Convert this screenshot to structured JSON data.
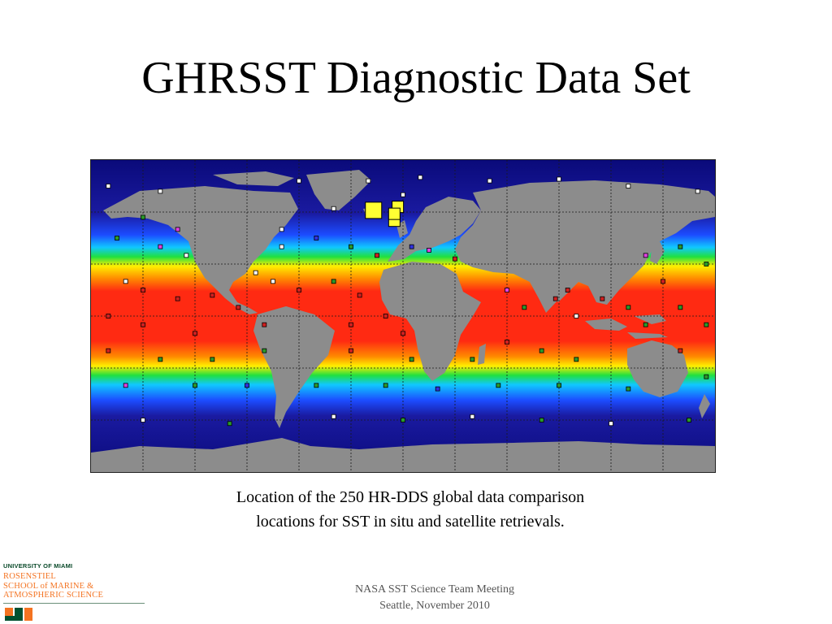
{
  "slide": {
    "title": "GHRSST Diagnostic Data Set",
    "caption_line1": "Location of the 250 HR-DDS global data comparison",
    "caption_line2": "locations for SST in situ and satellite retrievals.",
    "footer_line1": "NASA SST Science Team Meeting",
    "footer_line2": "Seattle, November 2010"
  },
  "logo": {
    "university": "UNIVERSITY OF MIAMI",
    "school_line1": "ROSENSTIEL",
    "school_line2": "SCHOOL of MARINE &",
    "school_line3": "ATMOSPHERIC SCIENCE",
    "colors": {
      "green": "#005030",
      "orange": "#f47321"
    }
  },
  "map": {
    "projection": "equirectangular",
    "lon_range": [
      -180,
      180
    ],
    "lat_range": [
      -90,
      90
    ],
    "graticule_deg": 30,
    "colors": {
      "land": "#8c8c8c",
      "cold": "#10108c",
      "blue": "#1c4cff",
      "cyan": "#10c8ff",
      "green": "#20e040",
      "yellow": "#ffee00",
      "orange": "#ff8a00",
      "red": "#ff2a12",
      "marker_white": "#ffffff",
      "marker_red": "#d02020",
      "marker_green": "#2a9a2a",
      "marker_magenta": "#e040e0",
      "marker_blue": "#3030e0",
      "highlight_yellow": "#ffff33"
    },
    "highlighted_sites": [
      {
        "lon": -17,
        "lat": 61
      },
      {
        "lon": -3,
        "lat": 63
      },
      {
        "lon": -5,
        "lat": 55
      },
      {
        "lon": -5,
        "lat": 59
      }
    ],
    "sites": [
      {
        "lon": -170,
        "lat": 75,
        "c": "w"
      },
      {
        "lon": -140,
        "lat": 72,
        "c": "w"
      },
      {
        "lon": -60,
        "lat": 78,
        "c": "w"
      },
      {
        "lon": -20,
        "lat": 78,
        "c": "w"
      },
      {
        "lon": 10,
        "lat": 80,
        "c": "w"
      },
      {
        "lon": 50,
        "lat": 78,
        "c": "w"
      },
      {
        "lon": 90,
        "lat": 79,
        "c": "w"
      },
      {
        "lon": 130,
        "lat": 75,
        "c": "w"
      },
      {
        "lon": 170,
        "lat": 72,
        "c": "w"
      },
      {
        "lon": -150,
        "lat": 57,
        "c": "g"
      },
      {
        "lon": -130,
        "lat": 50,
        "c": "m"
      },
      {
        "lon": -165,
        "lat": 45,
        "c": "g"
      },
      {
        "lon": -140,
        "lat": 40,
        "c": "m"
      },
      {
        "lon": -125,
        "lat": 35,
        "c": "w"
      },
      {
        "lon": -70,
        "lat": 40,
        "c": "w"
      },
      {
        "lon": -50,
        "lat": 45,
        "c": "b"
      },
      {
        "lon": -30,
        "lat": 40,
        "c": "g"
      },
      {
        "lon": -15,
        "lat": 35,
        "c": "r"
      },
      {
        "lon": 15,
        "lat": 38,
        "c": "m"
      },
      {
        "lon": 30,
        "lat": 33,
        "c": "r"
      },
      {
        "lon": 140,
        "lat": 35,
        "c": "m"
      },
      {
        "lon": 160,
        "lat": 40,
        "c": "g"
      },
      {
        "lon": 175,
        "lat": 30,
        "c": "g"
      },
      {
        "lon": 150,
        "lat": 20,
        "c": "r"
      },
      {
        "lon": -160,
        "lat": 20,
        "c": "w"
      },
      {
        "lon": -150,
        "lat": 15,
        "c": "r"
      },
      {
        "lon": -130,
        "lat": 10,
        "c": "r"
      },
      {
        "lon": -110,
        "lat": 12,
        "c": "r"
      },
      {
        "lon": -85,
        "lat": 25,
        "c": "w"
      },
      {
        "lon": -75,
        "lat": 20,
        "c": "w"
      },
      {
        "lon": -60,
        "lat": 15,
        "c": "r"
      },
      {
        "lon": -40,
        "lat": 20,
        "c": "g"
      },
      {
        "lon": -25,
        "lat": 12,
        "c": "r"
      },
      {
        "lon": -30,
        "lat": -5,
        "c": "r"
      },
      {
        "lon": -10,
        "lat": 0,
        "c": "r"
      },
      {
        "lon": 0,
        "lat": -10,
        "c": "r"
      },
      {
        "lon": 60,
        "lat": 15,
        "c": "m"
      },
      {
        "lon": 70,
        "lat": 5,
        "c": "g"
      },
      {
        "lon": 88,
        "lat": 10,
        "c": "r"
      },
      {
        "lon": 100,
        "lat": 0,
        "c": "w"
      },
      {
        "lon": 115,
        "lat": 10,
        "c": "r"
      },
      {
        "lon": 130,
        "lat": 5,
        "c": "g"
      },
      {
        "lon": 160,
        "lat": 5,
        "c": "g"
      },
      {
        "lon": 175,
        "lat": -5,
        "c": "g"
      },
      {
        "lon": -170,
        "lat": 0,
        "c": "r"
      },
      {
        "lon": -150,
        "lat": -5,
        "c": "r"
      },
      {
        "lon": -120,
        "lat": -10,
        "c": "r"
      },
      {
        "lon": -95,
        "lat": 5,
        "c": "r"
      },
      {
        "lon": -170,
        "lat": -20,
        "c": "r"
      },
      {
        "lon": -140,
        "lat": -25,
        "c": "g"
      },
      {
        "lon": -110,
        "lat": -25,
        "c": "g"
      },
      {
        "lon": -80,
        "lat": -20,
        "c": "g"
      },
      {
        "lon": -30,
        "lat": -20,
        "c": "r"
      },
      {
        "lon": 5,
        "lat": -25,
        "c": "g"
      },
      {
        "lon": 40,
        "lat": -25,
        "c": "g"
      },
      {
        "lon": 60,
        "lat": -15,
        "c": "r"
      },
      {
        "lon": 80,
        "lat": -20,
        "c": "g"
      },
      {
        "lon": 100,
        "lat": -25,
        "c": "g"
      },
      {
        "lon": 160,
        "lat": -20,
        "c": "r"
      },
      {
        "lon": 175,
        "lat": -35,
        "c": "g"
      },
      {
        "lon": -160,
        "lat": -40,
        "c": "m"
      },
      {
        "lon": -120,
        "lat": -40,
        "c": "g"
      },
      {
        "lon": -90,
        "lat": -40,
        "c": "b"
      },
      {
        "lon": -50,
        "lat": -40,
        "c": "g"
      },
      {
        "lon": -10,
        "lat": -40,
        "c": "g"
      },
      {
        "lon": 20,
        "lat": -42,
        "c": "b"
      },
      {
        "lon": 55,
        "lat": -40,
        "c": "g"
      },
      {
        "lon": 90,
        "lat": -40,
        "c": "g"
      },
      {
        "lon": 130,
        "lat": -42,
        "c": "g"
      },
      {
        "lon": -150,
        "lat": -60,
        "c": "w"
      },
      {
        "lon": -100,
        "lat": -62,
        "c": "g"
      },
      {
        "lon": -40,
        "lat": -58,
        "c": "w"
      },
      {
        "lon": 0,
        "lat": -60,
        "c": "g"
      },
      {
        "lon": 40,
        "lat": -58,
        "c": "w"
      },
      {
        "lon": 80,
        "lat": -60,
        "c": "g"
      },
      {
        "lon": 120,
        "lat": -62,
        "c": "w"
      },
      {
        "lon": 165,
        "lat": -60,
        "c": "g"
      },
      {
        "lon": -70,
        "lat": 50,
        "c": "w"
      },
      {
        "lon": 0,
        "lat": 70,
        "c": "w"
      },
      {
        "lon": -40,
        "lat": 62,
        "c": "w"
      },
      {
        "lon": 5,
        "lat": 40,
        "c": "b"
      },
      {
        "lon": -80,
        "lat": -5,
        "c": "r"
      },
      {
        "lon": 95,
        "lat": 15,
        "c": "r"
      },
      {
        "lon": 140,
        "lat": -5,
        "c": "g"
      }
    ]
  }
}
